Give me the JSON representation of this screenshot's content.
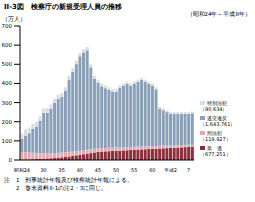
{
  "chart_data": {
    "type": "bar",
    "stacked": true,
    "title": "II-3図　検察庁の新規受理人員の推移",
    "subtitle": "（昭和24年～平成8年）",
    "y_label": "（万人）",
    "categories": [
      "昭和24",
      null,
      null,
      null,
      null,
      null,
      "30",
      null,
      null,
      null,
      null,
      "35",
      null,
      null,
      null,
      null,
      "40",
      null,
      null,
      null,
      null,
      "45",
      null,
      null,
      null,
      null,
      "50",
      null,
      null,
      null,
      null,
      "55",
      null,
      null,
      null,
      null,
      "60",
      null,
      null,
      null,
      null,
      "平成2",
      null,
      null,
      null,
      null,
      "7",
      null
    ],
    "ylim": [
      0,
      700
    ],
    "yticks": [
      0,
      100,
      200,
      300,
      400,
      500,
      600,
      700
    ],
    "grid": false,
    "notes": [
      "注　1　刑事統計年報及び検察統計年報による。",
      "　　2　巻末資料II-1の注2・3に同じ。"
    ],
    "series": [
      {
        "name": "業　過",
        "end_label": "（677,251）",
        "color": "#8b2e3c",
        "values": [
          2,
          3,
          3,
          4,
          5,
          6,
          7,
          8,
          9,
          10,
          12,
          14,
          16,
          18,
          21,
          24,
          27,
          30,
          33,
          36,
          39,
          42,
          44,
          45,
          46,
          47,
          48,
          49,
          50,
          51,
          52,
          53,
          54,
          55,
          56,
          57,
          58,
          59,
          60,
          61,
          62,
          63,
          64,
          65,
          66,
          67,
          68,
          67.7
        ]
      },
      {
        "name": "刑法犯",
        "end_label": "（119,927）",
        "color": "#e8a8b0",
        "values": [
          40,
          38,
          36,
          34,
          32,
          30,
          29,
          28,
          27,
          26,
          25,
          25,
          24,
          24,
          23,
          23,
          22,
          22,
          21,
          20,
          20,
          19,
          19,
          18,
          18,
          17,
          17,
          17,
          16,
          16,
          16,
          16,
          16,
          15,
          15,
          15,
          15,
          14,
          14,
          14,
          13,
          13,
          13,
          12,
          12,
          12,
          12,
          11.99
        ]
      },
      {
        "name": "道交違反",
        "end_label": "（1,643,761）",
        "color": "#8aa0b8",
        "values": [
          68,
          87,
          101,
          124,
          137,
          169,
          210,
          211,
          232,
          263,
          283,
          291,
          320,
          378,
          417,
          454,
          493,
          510,
          519,
          428,
          365,
          344,
          322,
          312,
          302,
          292,
          291,
          311,
          321,
          330,
          319,
          329,
          338,
          348,
          337,
          326,
          316,
          296,
          195,
          185,
          175,
          164,
          163,
          163,
          163,
          162,
          161,
          164.38
        ]
      },
      {
        "name": "特別法犯",
        "end_label": "（90,634）",
        "color": "#d8dde6",
        "values": [
          30,
          32,
          30,
          28,
          26,
          25,
          24,
          23,
          22,
          21,
          20,
          20,
          20,
          20,
          19,
          19,
          18,
          18,
          17,
          16,
          16,
          15,
          15,
          15,
          14,
          14,
          14,
          13,
          13,
          13,
          13,
          12,
          12,
          12,
          12,
          12,
          11,
          11,
          11,
          10,
          10,
          10,
          10,
          10,
          9,
          9,
          9,
          9.06
        ]
      }
    ]
  }
}
